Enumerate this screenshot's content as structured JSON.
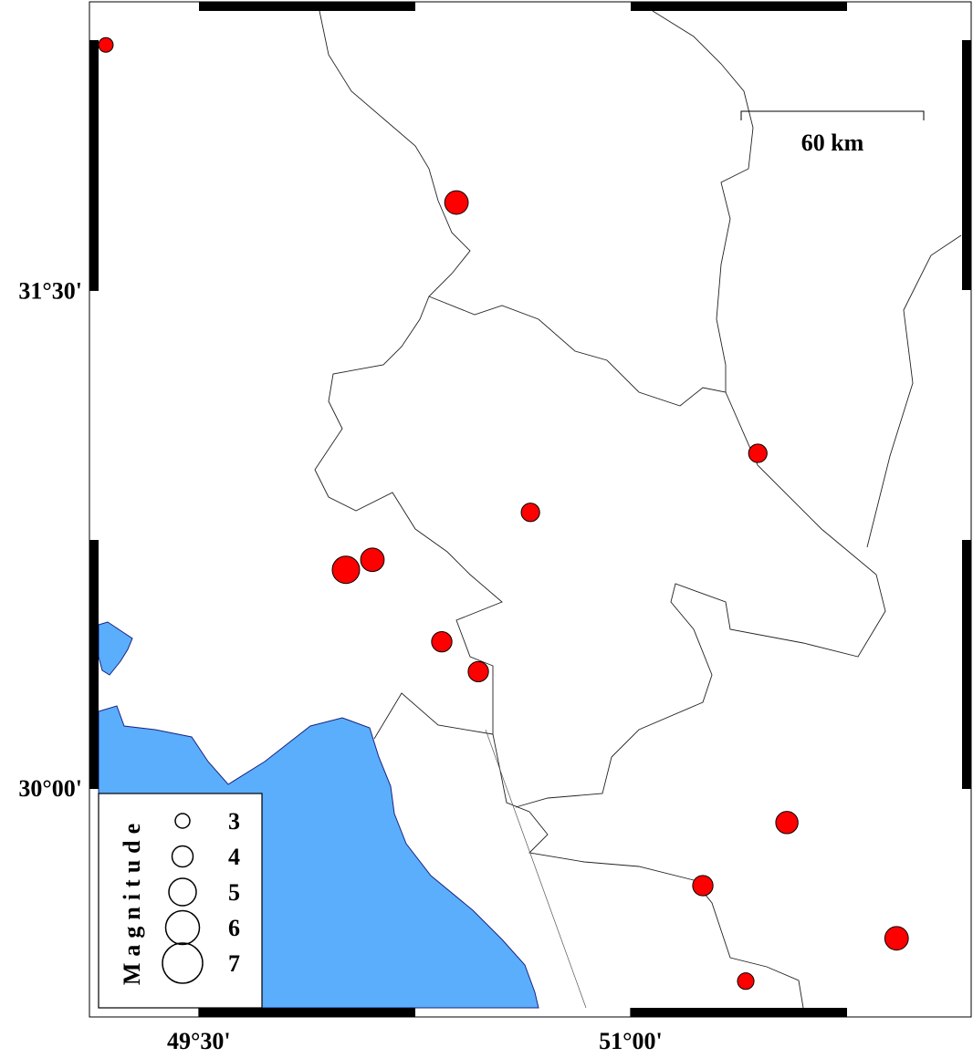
{
  "chart_data": {
    "type": "scatter",
    "xlim": [
      49.12,
      52.18
    ],
    "ylim": [
      29.31,
      32.37
    ],
    "xticks": [
      {
        "value": 49.5,
        "label": "49°30'"
      },
      {
        "value": 51,
        "label": "51°00'"
      }
    ],
    "yticks": [
      {
        "value": 31.5,
        "label": "31°30'"
      },
      {
        "value": 30,
        "label": "30°00'"
      }
    ],
    "scale_bar": "60 km",
    "color": "#ff0000",
    "legend": {
      "title": "Magnitude",
      "sizes": [
        3,
        4,
        5,
        6,
        7
      ]
    },
    "x": [
      49.177,
      50.395,
      51.442,
      50.652,
      50.011,
      50.103,
      50.344,
      50.471,
      51.543,
      51.251,
      51.924,
      51.4
    ],
    "y": [
      32.24,
      31.765,
      31.009,
      30.831,
      30.658,
      30.688,
      30.441,
      30.351,
      29.896,
      29.706,
      29.547,
      29.418
    ],
    "magnitude": [
      3,
      4.4,
      3.6,
      3.6,
      5,
      4.4,
      3.9,
      3.9,
      4.2,
      3.9,
      4.4,
      3.3
    ]
  }
}
